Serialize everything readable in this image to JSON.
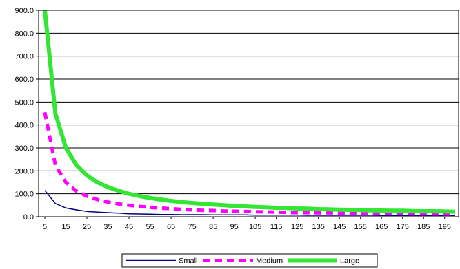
{
  "chart_data": {
    "type": "line",
    "title": "",
    "xlabel": "",
    "ylabel": "",
    "ylim": [
      0,
      900
    ],
    "y_ticks": [
      "0.0",
      "100.0",
      "200.0",
      "300.0",
      "400.0",
      "500.0",
      "600.0",
      "700.0",
      "800.0",
      "900.0"
    ],
    "x": [
      5,
      10,
      15,
      20,
      25,
      30,
      35,
      40,
      45,
      50,
      55,
      60,
      65,
      70,
      75,
      80,
      85,
      90,
      95,
      100,
      105,
      110,
      115,
      120,
      125,
      130,
      135,
      140,
      145,
      150,
      155,
      160,
      165,
      170,
      175,
      180,
      185,
      190,
      195,
      200
    ],
    "x_tick_labels": [
      "5",
      "15",
      "25",
      "35",
      "45",
      "55",
      "65",
      "75",
      "85",
      "95",
      "105",
      "115",
      "125",
      "135",
      "145",
      "155",
      "165",
      "175",
      "185",
      "195"
    ],
    "grid": "horizontal",
    "legend_position": "bottom",
    "series": [
      {
        "name": "Small",
        "color": "#000080",
        "style": "solid-thin",
        "values": [
          115,
          58,
          38,
          30,
          23,
          20,
          18,
          16,
          13,
          12,
          11,
          10,
          10,
          9,
          9,
          9,
          8,
          8,
          8,
          8,
          7,
          7,
          7,
          7,
          7,
          6,
          6,
          6,
          6,
          6,
          6,
          6,
          5,
          5,
          5,
          5,
          5,
          5,
          5,
          5
        ]
      },
      {
        "name": "Medium",
        "color": "#FF00FF",
        "style": "dashed-thick",
        "values": [
          455,
          225,
          150,
          112,
          90,
          75,
          64,
          56,
          50,
          45,
          41,
          38,
          35,
          32,
          30,
          28,
          27,
          25,
          24,
          23,
          22,
          21,
          20,
          19,
          18,
          18,
          17,
          17,
          16,
          16,
          15,
          15,
          14,
          14,
          14,
          13,
          13,
          13,
          12,
          12
        ]
      },
      {
        "name": "Large",
        "color": "#33E633",
        "style": "solid-thick",
        "values": [
          900,
          450,
          300,
          225,
          180,
          150,
          129,
          113,
          100,
          90,
          82,
          75,
          69,
          64,
          60,
          56,
          53,
          50,
          47,
          45,
          43,
          41,
          39,
          38,
          36,
          35,
          33,
          32,
          31,
          30,
          29,
          28,
          27,
          26,
          26,
          25,
          24,
          24,
          23,
          22
        ]
      }
    ]
  }
}
